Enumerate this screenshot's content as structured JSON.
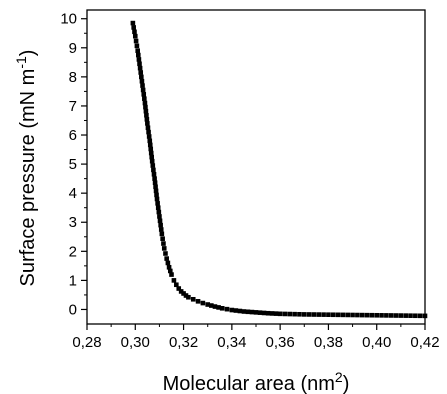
{
  "chart_data": {
    "type": "scatter",
    "title": "",
    "xlabel": "Molecular area (nm",
    "xlabel_sup": "2",
    "xlabel_end": ")",
    "ylabel": "Surface pressure (mN m",
    "ylabel_sup": "-1",
    "ylabel_end": ")",
    "xlim": [
      0.28,
      0.42
    ],
    "ylim": [
      -0.5,
      10.3
    ],
    "x_ticks": [
      0.28,
      0.3,
      0.32,
      0.34,
      0.36,
      0.38,
      0.4,
      0.42
    ],
    "x_tick_labels": [
      "0,28",
      "0,30",
      "0,32",
      "0,34",
      "0,36",
      "0,38",
      "0,40",
      "0,42"
    ],
    "y_ticks": [
      0,
      1,
      2,
      3,
      4,
      5,
      6,
      7,
      8,
      9,
      10
    ],
    "y_tick_labels": [
      "0",
      "1",
      "2",
      "3",
      "4",
      "5",
      "6",
      "7",
      "8",
      "9",
      "10"
    ],
    "grid": false,
    "legend": "none",
    "marker_color": "#000000",
    "series": [
      {
        "x": [
          0.299,
          0.3,
          0.301,
          0.302,
          0.303,
          0.304,
          0.305,
          0.306,
          0.307,
          0.308,
          0.309,
          0.31,
          0.311,
          0.312,
          0.313,
          0.314,
          0.315,
          0.316,
          0.317,
          0.318,
          0.319,
          0.32,
          0.321,
          0.322,
          0.324,
          0.326,
          0.328,
          0.33,
          0.333,
          0.336,
          0.34,
          0.345,
          0.35,
          0.355,
          0.36,
          0.37,
          0.38,
          0.39,
          0.4,
          0.41,
          0.42
        ],
        "y": [
          9.85,
          9.4,
          8.9,
          8.3,
          7.7,
          7.1,
          6.4,
          5.8,
          5.1,
          4.5,
          3.8,
          3.2,
          2.6,
          2.1,
          1.75,
          1.45,
          1.2,
          1.0,
          0.85,
          0.72,
          0.62,
          0.55,
          0.48,
          0.42,
          0.35,
          0.28,
          0.22,
          0.17,
          0.1,
          0.04,
          -0.02,
          -0.07,
          -0.1,
          -0.13,
          -0.15,
          -0.17,
          -0.18,
          -0.19,
          -0.2,
          -0.21,
          -0.22
        ]
      }
    ]
  }
}
